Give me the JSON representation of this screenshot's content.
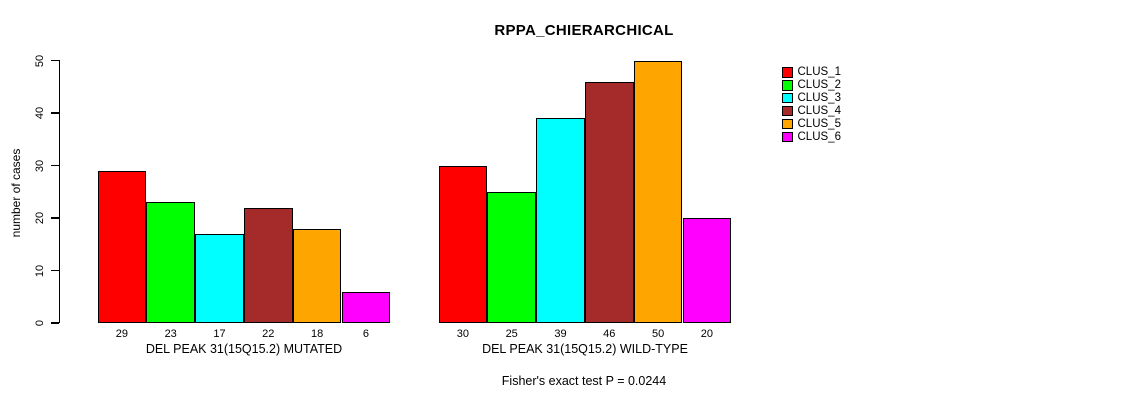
{
  "chart_data": {
    "type": "bar",
    "title": "RPPA_CHIERARCHICAL",
    "ylabel": "number of cases",
    "xlabel": "",
    "ylim": [
      0,
      50
    ],
    "yticks": [
      0,
      10,
      20,
      30,
      40,
      50
    ],
    "grid": false,
    "legend_position": "right-outside",
    "clusters": [
      {
        "label": "CLUS_1",
        "color": "#FF0000"
      },
      {
        "label": "CLUS_2",
        "color": "#00FF00"
      },
      {
        "label": "CLUS_3",
        "color": "#00FFFF"
      },
      {
        "label": "CLUS_4",
        "color": "#A52A2A"
      },
      {
        "label": "CLUS_5",
        "color": "#FFA500"
      },
      {
        "label": "CLUS_6",
        "color": "#FF00FF"
      }
    ],
    "groups": [
      {
        "label": "DEL PEAK 31(15Q15.2) MUTATED",
        "values": [
          29,
          23,
          17,
          22,
          18,
          6
        ]
      },
      {
        "label": "DEL PEAK 31(15Q15.2) WILD-TYPE",
        "values": [
          30,
          25,
          39,
          46,
          50,
          20
        ]
      }
    ],
    "annotation": "Fisher's exact test P = 0.0244"
  }
}
